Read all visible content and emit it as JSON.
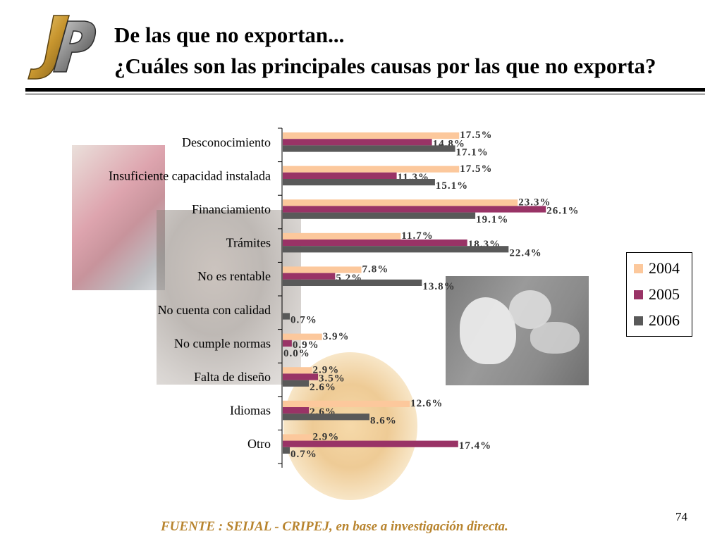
{
  "header": {
    "title_line1": "De las que no exportan...",
    "title_line2": "¿Cuáles son las principales causas por las que no exporta?"
  },
  "logo": {
    "icon": "jp-logo-icon",
    "colors": [
      "#c89a3a",
      "#6e6e6e"
    ]
  },
  "chart_data": {
    "type": "bar",
    "orientation": "horizontal",
    "categories": [
      "Desconocimiento",
      "Insuficiente capacidad instalada",
      "Financiamiento",
      "Trámites",
      "No es rentable",
      "No cuenta con calidad",
      "No cumple normas",
      "Falta de diseño",
      "Idiomas",
      "Otro"
    ],
    "series": [
      {
        "name": "2004",
        "color": "#fcc89c",
        "values": [
          17.5,
          17.5,
          23.3,
          11.7,
          7.8,
          null,
          3.9,
          2.9,
          12.6,
          2.9
        ],
        "labels": [
          "17.5%",
          "17.5%",
          "23.3%",
          "11.7%",
          "7.8%",
          "",
          "3.9%",
          "2.9%",
          "12.6%",
          "2.9%"
        ]
      },
      {
        "name": "2005",
        "color": "#993366",
        "values": [
          14.8,
          11.3,
          26.1,
          18.3,
          5.2,
          null,
          0.9,
          3.5,
          2.6,
          17.4
        ],
        "labels": [
          "14.8%",
          "11.3%",
          "26.1%",
          "18.3%",
          "5.2%",
          "",
          "0.9%",
          "3.5%",
          "2.6%",
          "17.4%"
        ]
      },
      {
        "name": "2006",
        "color": "#595959",
        "values": [
          17.1,
          15.1,
          19.1,
          22.4,
          13.8,
          0.7,
          0.0,
          2.6,
          8.6,
          0.7
        ],
        "labels": [
          "17.1%",
          "15.1%",
          "19.1%",
          "22.4%",
          "13.8%",
          "0.7%",
          "0.0%",
          "2.6%",
          "8.6%",
          "0.7%"
        ]
      }
    ],
    "xlim": [
      0,
      30
    ],
    "legend_position": "right",
    "grid": false,
    "label_color": "#333333"
  },
  "footer": {
    "page_number": "74",
    "source": "FUENTE :  SEIJAL - CRIPEJ,  en base a investigación directa.",
    "source_color": "#b8842e"
  }
}
